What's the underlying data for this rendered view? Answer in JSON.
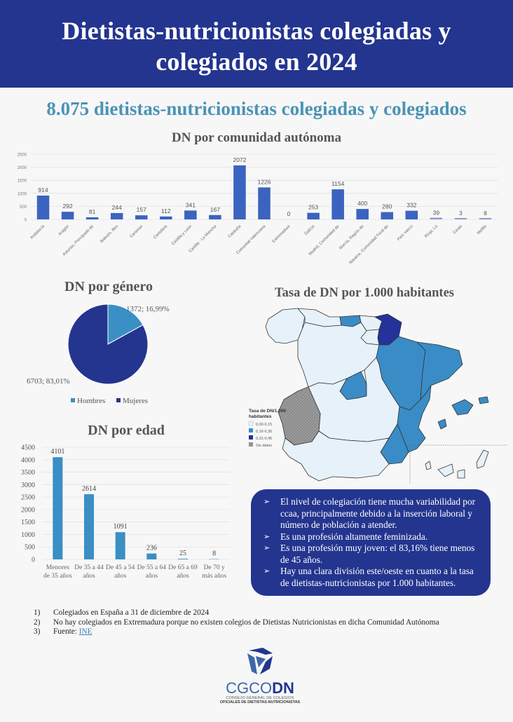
{
  "header": {
    "title_line1": "Dietistas-nutricionistas colegiadas y",
    "title_line2": "colegiados en 2024"
  },
  "subtitle": "8.075 dietistas-nutricionistas colegiadas y colegiados",
  "colors": {
    "brand_dark": "#24358f",
    "bar_region": "#3b63c0",
    "bar_age": "#3a8fc4",
    "pie_hombres": "#3a8fc4",
    "pie_mujeres": "#24358f",
    "map_low": "#e6f1f9",
    "map_mid": "#3a8cc6",
    "map_high": "#24329a",
    "map_nodata": "#9b9b9b"
  },
  "chart_data": [
    {
      "type": "bar",
      "title": "DN por comunidad autónoma",
      "categories": [
        "Andalucía",
        "Aragón",
        "Asturias, Principado de",
        "Balears, Illes",
        "Canarias",
        "Cantabria",
        "Castilla y León",
        "Castilla - La Mancha",
        "Cataluña",
        "Comunitat Valenciana",
        "Extremadura",
        "Galicia",
        "Madrid, Comunidad de",
        "Murcia, Región de",
        "Navarra, Comunidad Foral de",
        "País Vasco",
        "Rioja, La",
        "Ceuta",
        "Melilla"
      ],
      "values": [
        914,
        292,
        81,
        244,
        157,
        112,
        341,
        167,
        2072,
        1226,
        0,
        253,
        1154,
        400,
        280,
        332,
        39,
        3,
        8
      ],
      "value_labels": [
        "914",
        "292",
        "81",
        "244",
        "157",
        "112",
        "341",
        "167",
        "2072",
        "1226",
        "0",
        "253",
        "1154",
        "400",
        "280",
        "332",
        "39",
        "3",
        "8"
      ],
      "yticks": [
        0,
        500,
        1000,
        1500,
        2000,
        2500
      ],
      "ytick_labels": [
        "0",
        "500",
        "1000",
        "1500",
        "2000",
        "2500"
      ],
      "ylim": [
        0,
        2500
      ],
      "xlabel": "",
      "ylabel": "",
      "grid": true
    },
    {
      "type": "pie",
      "title": "DN por género",
      "slices": [
        {
          "label": "Hombres",
          "value": 1372,
          "percent": 16.99,
          "data_label": "1372; 16,99%"
        },
        {
          "label": "Mujeres",
          "value": 6703,
          "percent": 83.01,
          "data_label": "6703; 83,01%"
        }
      ],
      "legend": [
        "Hombres",
        "Mujeres"
      ],
      "legend_position": "bottom"
    },
    {
      "type": "bar",
      "title": "DN por edad",
      "categories": [
        "Menores de 35 años",
        "De 35 a 44 años",
        "De 45 a 54 años",
        "De 55 a 64 años",
        "De 65 a 69 años",
        "De 70 y más años"
      ],
      "category_lines": [
        [
          "Menores",
          "de 35 años"
        ],
        [
          "De 35 a 44",
          "años"
        ],
        [
          "De 45 a 54",
          "años"
        ],
        [
          "De 55 a 64",
          "años"
        ],
        [
          "De 65 a 69",
          "años"
        ],
        [
          "De 70 y",
          "más años"
        ]
      ],
      "values": [
        4101,
        2614,
        1091,
        236,
        25,
        8
      ],
      "value_labels": [
        "4101",
        "2614",
        "1091",
        "236",
        "25",
        "8"
      ],
      "yticks": [
        0,
        500,
        1000,
        1500,
        2000,
        2500,
        3000,
        3500,
        4000,
        4500
      ],
      "ytick_labels": [
        "0",
        "500",
        "1000",
        "1500",
        "2000",
        "2500",
        "3000",
        "3500",
        "4000",
        "4500"
      ],
      "ylim": [
        0,
        4500
      ],
      "xlabel": "",
      "ylabel": "",
      "grid": true
    }
  ],
  "map": {
    "title": "Tasa de DN por 1.000 habitantes",
    "legend_title_line1": "Tasa de DN/1.000",
    "legend_title_line2": "habitantes",
    "legend_items": [
      {
        "label": "0,00-0,15",
        "class": "low"
      },
      {
        "label": "0,16-0,30",
        "class": "mid"
      },
      {
        "label": "0,31-0,45",
        "class": "high"
      },
      {
        "label": "Sin datos",
        "class": "nodata"
      }
    ],
    "regions": [
      {
        "name": "Galicia",
        "class": "low"
      },
      {
        "name": "Asturias",
        "class": "low"
      },
      {
        "name": "Cantabria",
        "class": "mid"
      },
      {
        "name": "País Vasco",
        "class": "low"
      },
      {
        "name": "Navarra",
        "class": "high"
      },
      {
        "name": "La Rioja",
        "class": "low"
      },
      {
        "name": "Castilla y León",
        "class": "low"
      },
      {
        "name": "Aragón",
        "class": "mid"
      },
      {
        "name": "Cataluña",
        "class": "mid"
      },
      {
        "name": "Madrid",
        "class": "mid"
      },
      {
        "name": "Castilla - La Mancha",
        "class": "low"
      },
      {
        "name": "Extremadura",
        "class": "nodata"
      },
      {
        "name": "Comunitat Valenciana",
        "class": "mid"
      },
      {
        "name": "Murcia",
        "class": "mid"
      },
      {
        "name": "Andalucía",
        "class": "low"
      },
      {
        "name": "Illes Balears",
        "class": "mid"
      },
      {
        "name": "Canarias",
        "class": "low"
      }
    ]
  },
  "callout": {
    "bullet_icon": "arrow-bullet-icon",
    "items": [
      "El  nivel de colegiación tiene mucha variabilidad por ccaa, principalmente debido a la inserción laboral y número de población a atender.",
      "Es una profesión altamente feminizada.",
      "Es una profesión muy joven: el 83,16% tiene menos de 45 años.",
      "Hay una clara división este/oeste en cuanto a la tasa de dietistas-nutricionistas por 1.000 habitantes."
    ]
  },
  "footnotes": [
    {
      "num": "1)",
      "text": "Colegiados en España a 31 de diciembre de 2024"
    },
    {
      "num": "2)",
      "text": "No hay colegiados en Extremadura porque no existen colegios de Dietistas Nutricionistas en dicha Comunidad Autónoma"
    },
    {
      "num": "3)",
      "text": "Fuente: ",
      "link": "INE"
    }
  ],
  "logo": {
    "name_part1": "CGCO",
    "name_part2": "DN",
    "line1": "CONSEJO GENERAL DE COLEGIOS",
    "line2": "OFICIALES DE DIETISTAS-NUTRICIONISTAS"
  }
}
